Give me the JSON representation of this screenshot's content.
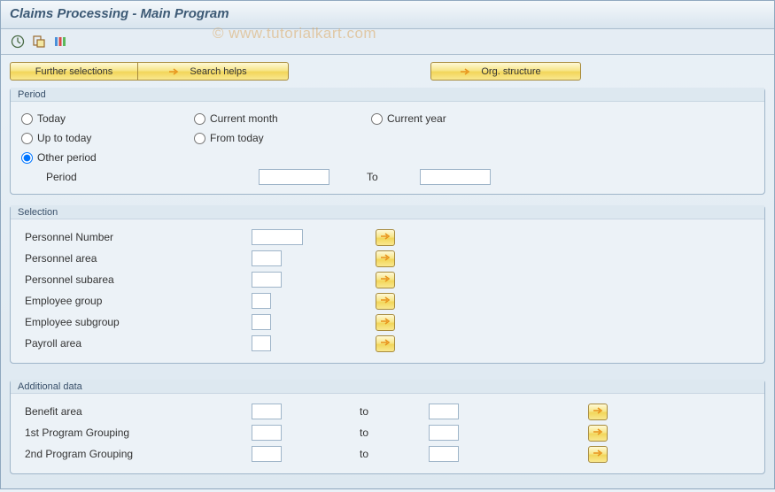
{
  "colors": {
    "accent_button_bg_top": "#fff9d6",
    "accent_button_bg_bottom": "#f2d65a",
    "panel_bg": "#dde8f0",
    "inner_bg": "#ecf2f7",
    "border": "#9fb5c9",
    "title_text": "#3d5a75",
    "arrow_orange": "#e8941c"
  },
  "title": "Claims Processing - Main Program",
  "watermark": "© www.tutorialkart.com",
  "toolbar_icons": [
    "execute-icon",
    "execute-print-icon",
    "variants-icon"
  ],
  "top_buttons": {
    "further_selections": "Further selections",
    "search_helps": "Search helps",
    "org_structure": "Org. structure"
  },
  "period": {
    "group_label": "Period",
    "radios": {
      "today": "Today",
      "current_month": "Current month",
      "current_year": "Current year",
      "up_to_today": "Up to today",
      "from_today": "From today",
      "other_period": "Other period"
    },
    "selected": "other_period",
    "period_label": "Period",
    "to_label": "To",
    "value_from": "",
    "value_to": ""
  },
  "selection": {
    "group_label": "Selection",
    "rows": [
      {
        "label": "Personnel Number",
        "value": "",
        "input_width": "w60"
      },
      {
        "label": "Personnel area",
        "value": "",
        "input_width": "w34"
      },
      {
        "label": "Personnel subarea",
        "value": "",
        "input_width": "w34"
      },
      {
        "label": "Employee group",
        "value": "",
        "input_width": "w22"
      },
      {
        "label": "Employee subgroup",
        "value": "",
        "input_width": "w22"
      },
      {
        "label": "Payroll area",
        "value": "",
        "input_width": "w22"
      }
    ]
  },
  "additional": {
    "group_label": "Additional data",
    "to_label": "to",
    "rows": [
      {
        "label": "Benefit area",
        "from": "",
        "to": ""
      },
      {
        "label": "1st Program Grouping",
        "from": "",
        "to": ""
      },
      {
        "label": "2nd Program Grouping",
        "from": "",
        "to": ""
      }
    ]
  }
}
